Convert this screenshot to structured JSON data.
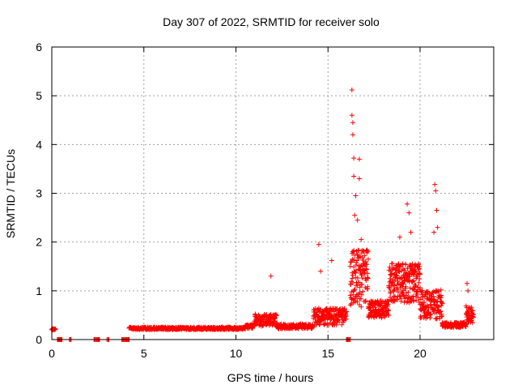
{
  "chart_data": {
    "type": "scatter",
    "title": "Day 307 of 2022, SRMTID for receiver solo",
    "xlabel": "GPS time / hours",
    "ylabel": "SRMTID / TECUs",
    "xlim": [
      0,
      24
    ],
    "ylim": [
      0,
      6
    ],
    "x_ticks": [
      0,
      5,
      10,
      15,
      20
    ],
    "y_ticks": [
      0,
      1,
      2,
      3,
      4,
      5,
      6
    ],
    "x_tick_labels": [
      "0",
      "5",
      "10",
      "15",
      "20"
    ],
    "y_tick_labels": [
      "0",
      "1",
      "2",
      "3",
      "4",
      "5",
      "6"
    ],
    "grid": true,
    "marker": "+",
    "color": "#ff0000",
    "series": [
      {
        "name": "SRMTID",
        "segments": [
          {
            "start": 0.0,
            "end": 0.2,
            "base": 0.2,
            "noise": 0.04,
            "n": 12
          },
          {
            "start": 0.3,
            "end": 0.55,
            "base": 0.0,
            "noise": 0.0,
            "n": 10
          },
          {
            "start": 0.95,
            "end": 1.05,
            "base": 0.0,
            "noise": 0.0,
            "n": 3
          },
          {
            "start": 2.3,
            "end": 2.6,
            "base": 0.0,
            "noise": 0.0,
            "n": 8
          },
          {
            "start": 3.0,
            "end": 3.1,
            "base": 0.0,
            "noise": 0.0,
            "n": 3
          },
          {
            "start": 3.8,
            "end": 4.2,
            "base": 0.0,
            "noise": 0.0,
            "n": 10
          },
          {
            "start": 4.2,
            "end": 10.5,
            "base": 0.22,
            "noise": 0.05,
            "n": 420
          },
          {
            "start": 10.5,
            "end": 11.0,
            "base": 0.25,
            "noise": 0.08,
            "n": 40
          },
          {
            "start": 11.0,
            "end": 12.2,
            "base": 0.35,
            "noise": 0.25,
            "n": 110
          },
          {
            "start": 12.2,
            "end": 14.2,
            "base": 0.25,
            "noise": 0.1,
            "n": 150
          },
          {
            "start": 14.2,
            "end": 16.0,
            "base": 0.4,
            "noise": 0.35,
            "n": 170
          },
          {
            "start": 16.0,
            "end": 16.2,
            "base": 0.0,
            "noise": 0.0,
            "n": 6
          },
          {
            "start": 16.2,
            "end": 17.2,
            "base": 1.0,
            "noise": 1.2,
            "n": 130
          },
          {
            "start": 17.2,
            "end": 18.3,
            "base": 0.55,
            "noise": 0.35,
            "n": 130
          },
          {
            "start": 18.3,
            "end": 20.0,
            "base": 1.0,
            "noise": 0.8,
            "n": 220
          },
          {
            "start": 20.0,
            "end": 21.2,
            "base": 0.6,
            "noise": 0.6,
            "n": 140
          },
          {
            "start": 21.2,
            "end": 22.5,
            "base": 0.28,
            "noise": 0.1,
            "n": 140
          },
          {
            "start": 22.5,
            "end": 22.9,
            "base": 0.45,
            "noise": 0.35,
            "n": 40
          }
        ],
        "peaks": [
          {
            "x": 11.9,
            "y": 1.3
          },
          {
            "x": 14.5,
            "y": 1.95
          },
          {
            "x": 14.6,
            "y": 1.4
          },
          {
            "x": 15.2,
            "y": 1.62
          },
          {
            "x": 16.3,
            "y": 5.12
          },
          {
            "x": 16.3,
            "y": 4.6
          },
          {
            "x": 16.35,
            "y": 4.45
          },
          {
            "x": 16.35,
            "y": 4.2
          },
          {
            "x": 16.4,
            "y": 3.72
          },
          {
            "x": 16.7,
            "y": 3.7
          },
          {
            "x": 16.4,
            "y": 3.35
          },
          {
            "x": 16.7,
            "y": 3.3
          },
          {
            "x": 16.5,
            "y": 2.95
          },
          {
            "x": 16.45,
            "y": 2.55
          },
          {
            "x": 16.6,
            "y": 2.45
          },
          {
            "x": 16.8,
            "y": 2.05
          },
          {
            "x": 19.3,
            "y": 2.78
          },
          {
            "x": 19.4,
            "y": 2.6
          },
          {
            "x": 19.5,
            "y": 2.2
          },
          {
            "x": 18.9,
            "y": 2.1
          },
          {
            "x": 20.8,
            "y": 3.18
          },
          {
            "x": 20.85,
            "y": 3.05
          },
          {
            "x": 20.9,
            "y": 2.65
          },
          {
            "x": 20.95,
            "y": 2.3
          },
          {
            "x": 20.75,
            "y": 2.2
          },
          {
            "x": 22.55,
            "y": 1.15
          },
          {
            "x": 22.6,
            "y": 1.0
          }
        ]
      }
    ]
  }
}
